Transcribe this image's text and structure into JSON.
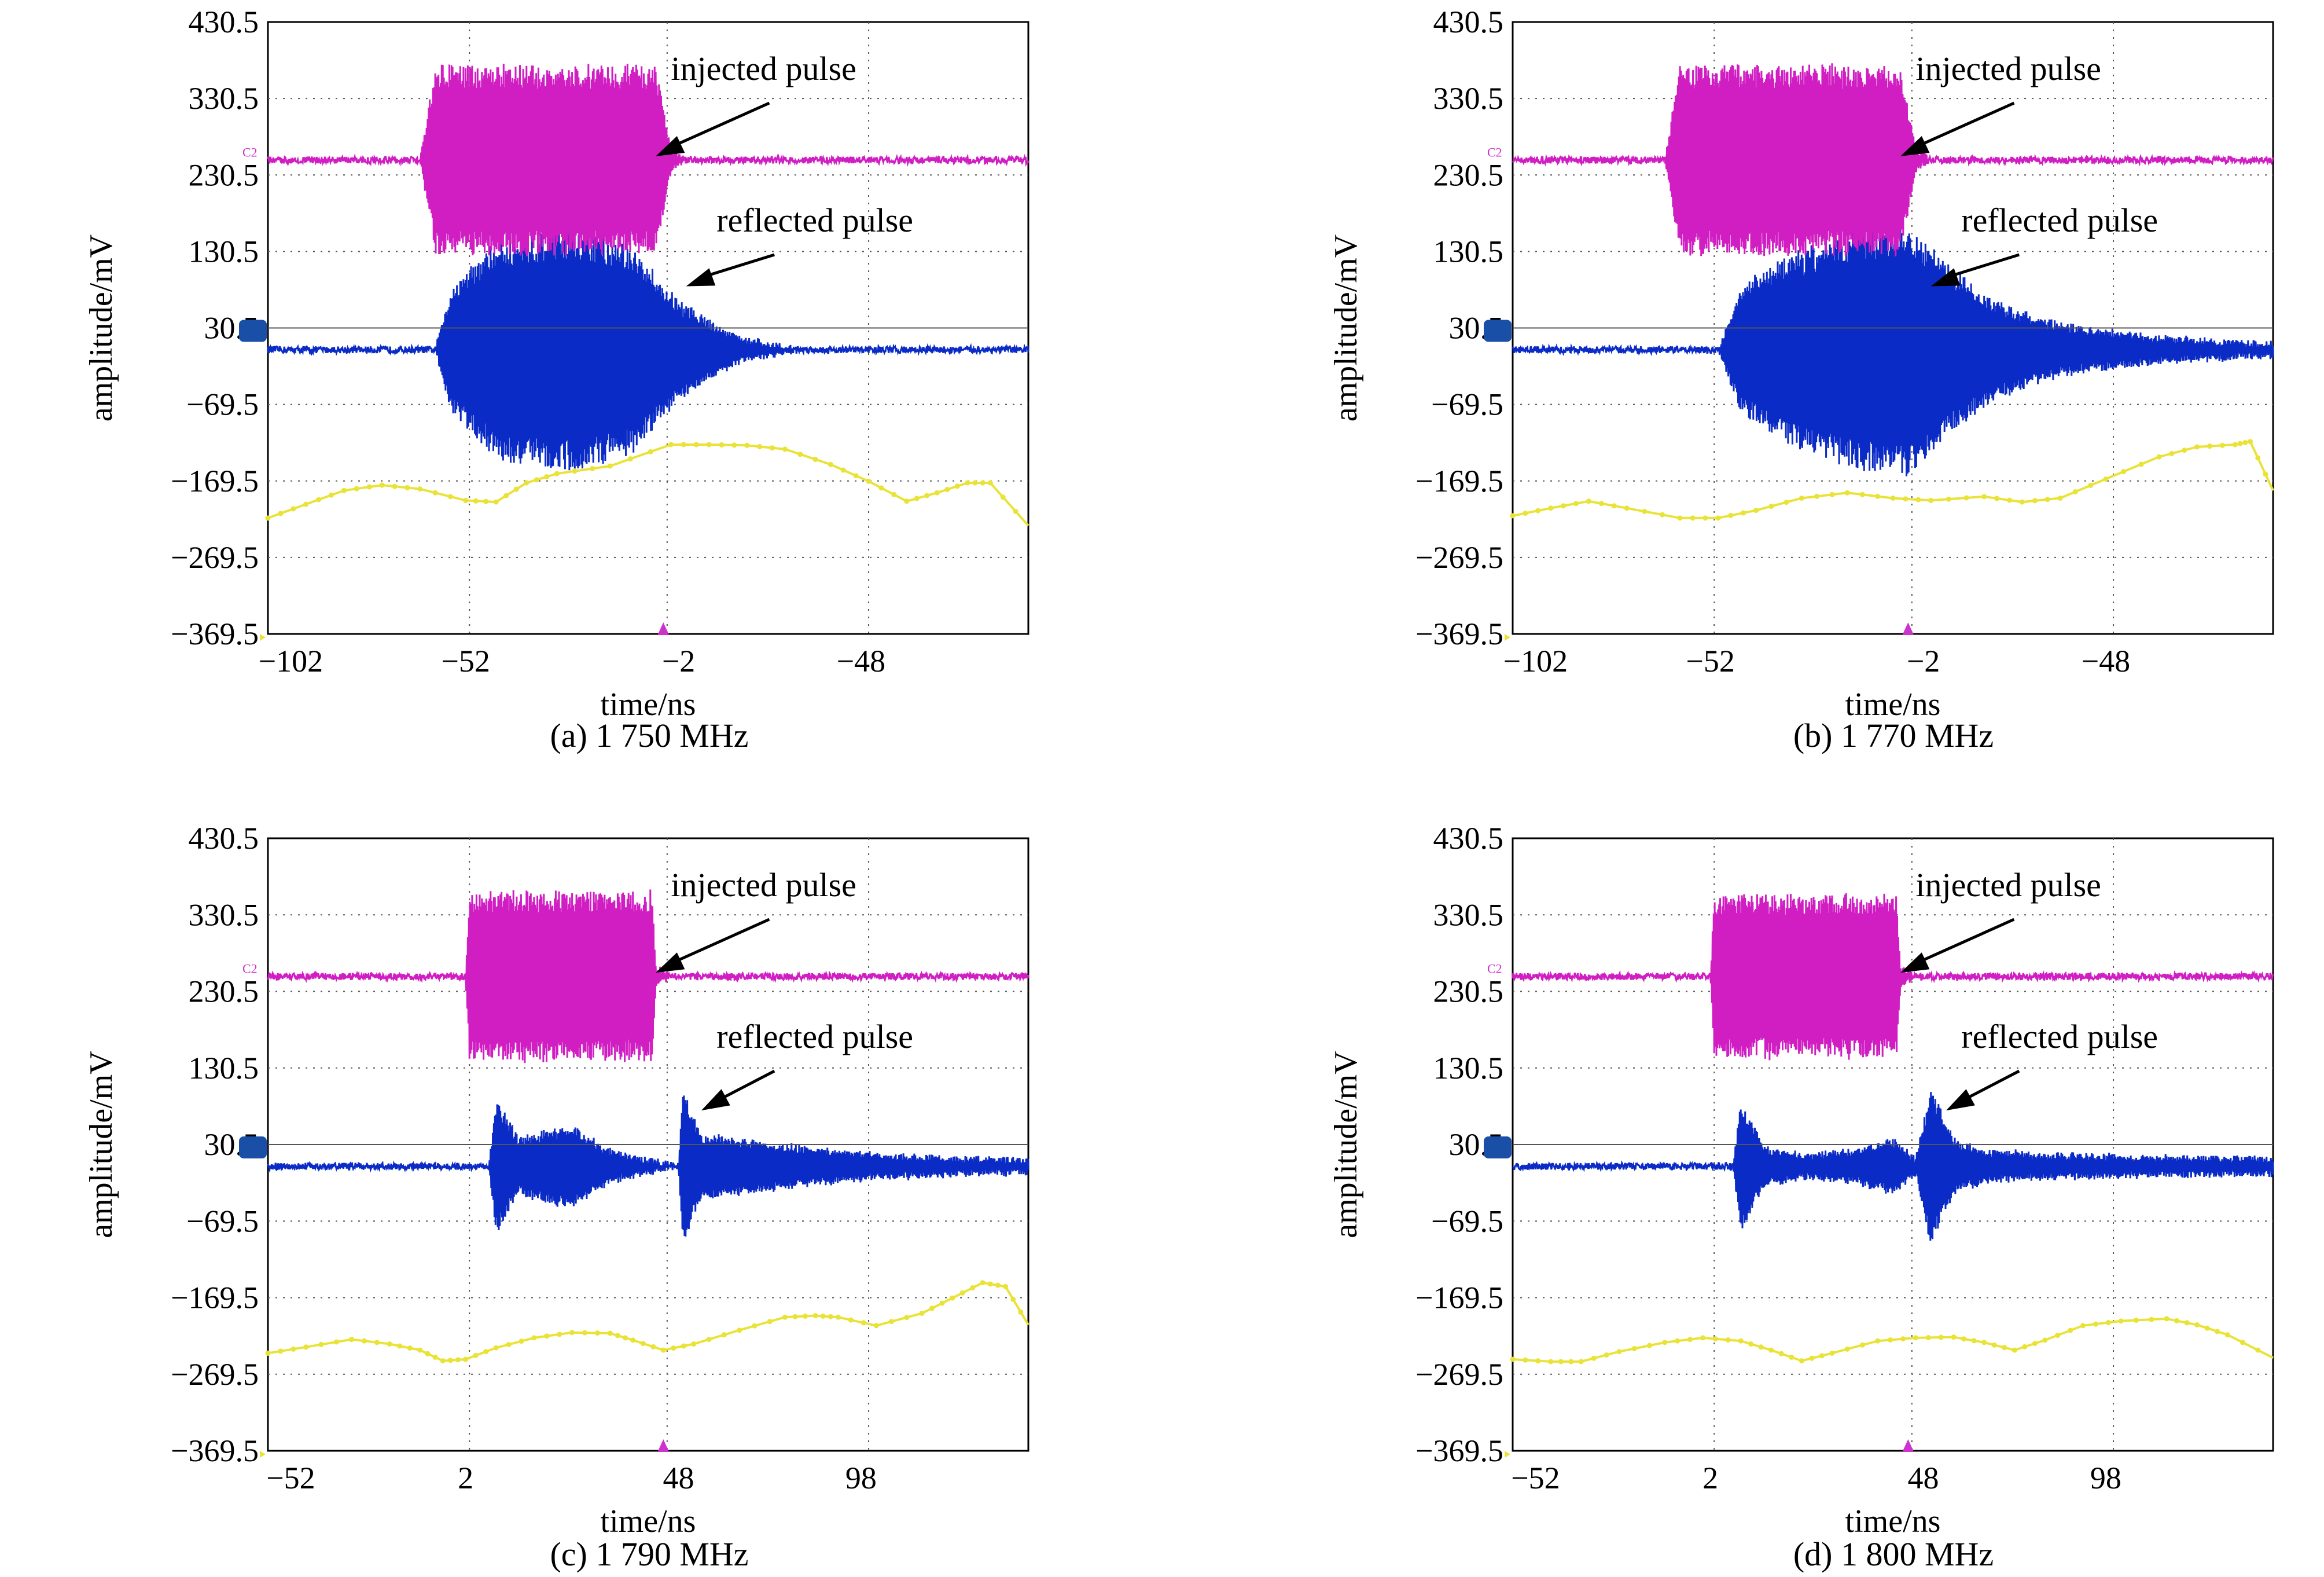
{
  "colors": {
    "injected": "#d01ec3",
    "reflected": "#0b2bc6",
    "reference": "#e9e338",
    "grid": "#555555",
    "marker_ch2": "#cc33cc",
    "marker_ch1": "#1a4fa8"
  },
  "chart_data": [
    {
      "type": "line",
      "caption": "(a) 1 750 MHz",
      "xlabel": "time/ns",
      "ylabel": "amplitude/mV",
      "x_ticks": [
        "−102",
        "−52",
        "−2",
        "−48"
      ],
      "y_ticks": [
        "430.5",
        "330.5",
        "230.5",
        "130.5",
        "30.5",
        "−69.5",
        "−169.5",
        "−269.5",
        "−369.5"
      ],
      "ylim": [
        -369.5,
        430.5
      ],
      "grid": true,
      "channel_marker": "C2",
      "annotations": [
        "injected pulse",
        "reflected pulse"
      ],
      "series": [
        {
          "baseline": 250,
          "envelope": [
            [
              0,
              0
            ],
            [
              0.2,
              0
            ],
            [
              0.22,
              1
            ],
            [
              0.51,
              1
            ],
            [
              0.53,
              0.12
            ],
            [
              0.55,
              0
            ],
            [
              1,
              0
            ]
          ],
          "amp": 125
        },
        {
          "baseline": 2,
          "envelope": [
            [
              0,
              0
            ],
            [
              0.22,
              0
            ],
            [
              0.24,
              0.5
            ],
            [
              0.3,
              0.9
            ],
            [
              0.4,
              1
            ],
            [
              0.48,
              0.85
            ],
            [
              0.54,
              0.4
            ],
            [
              0.62,
              0.1
            ],
            [
              0.7,
              0
            ],
            [
              1,
              0
            ]
          ],
          "amp": 160
        },
        {
          "points": [
            [
              0,
              -218
            ],
            [
              0.05,
              -200
            ],
            [
              0.1,
              -182
            ],
            [
              0.15,
              -175
            ],
            [
              0.2,
              -180
            ],
            [
              0.26,
              -195
            ],
            [
              0.3,
              -197
            ],
            [
              0.34,
              -172
            ],
            [
              0.38,
              -160
            ],
            [
              0.45,
              -150
            ],
            [
              0.53,
              -122
            ],
            [
              0.58,
              -122
            ],
            [
              0.63,
              -123
            ],
            [
              0.68,
              -128
            ],
            [
              0.74,
              -148
            ],
            [
              0.79,
              -170
            ],
            [
              0.84,
              -196
            ],
            [
              0.88,
              -185
            ],
            [
              0.92,
              -172
            ],
            [
              0.95,
              -172
            ],
            [
              1,
              -228
            ]
          ]
        }
      ]
    },
    {
      "type": "line",
      "caption": "(b) 1 770 MHz",
      "xlabel": "time/ns",
      "ylabel": "amplitude/mV",
      "x_ticks": [
        "−102",
        "−52",
        "−2",
        "−48"
      ],
      "y_ticks": [
        "430.5",
        "330.5",
        "230.5",
        "130.5",
        "30.5",
        "−69.5",
        "−169.5",
        "−269.5",
        "−369.5"
      ],
      "ylim": [
        -369.5,
        430.5
      ],
      "grid": true,
      "channel_marker": "C2",
      "annotations": [
        "injected pulse",
        "reflected pulse"
      ],
      "series": [
        {
          "baseline": 250,
          "envelope": [
            [
              0,
              0
            ],
            [
              0.2,
              0
            ],
            [
              0.22,
              1
            ],
            [
              0.51,
              1
            ],
            [
              0.53,
              0.12
            ],
            [
              0.55,
              0
            ],
            [
              1,
              0
            ]
          ],
          "amp": 125
        },
        {
          "baseline": 2,
          "envelope": [
            [
              0,
              0
            ],
            [
              0.27,
              0
            ],
            [
              0.3,
              0.5
            ],
            [
              0.36,
              0.75
            ],
            [
              0.45,
              0.95
            ],
            [
              0.52,
              1
            ],
            [
              0.56,
              0.75
            ],
            [
              0.63,
              0.4
            ],
            [
              0.72,
              0.2
            ],
            [
              0.85,
              0.1
            ],
            [
              1,
              0.05
            ]
          ],
          "amp": 165
        },
        {
          "points": [
            [
              0,
              -215
            ],
            [
              0.05,
              -205
            ],
            [
              0.1,
              -196
            ],
            [
              0.15,
              -205
            ],
            [
              0.22,
              -218
            ],
            [
              0.27,
              -218
            ],
            [
              0.32,
              -208
            ],
            [
              0.38,
              -192
            ],
            [
              0.44,
              -185
            ],
            [
              0.5,
              -192
            ],
            [
              0.55,
              -195
            ],
            [
              0.62,
              -190
            ],
            [
              0.67,
              -197
            ],
            [
              0.72,
              -192
            ],
            [
              0.78,
              -167
            ],
            [
              0.85,
              -138
            ],
            [
              0.9,
              -125
            ],
            [
              0.95,
              -122
            ],
            [
              0.97,
              -118
            ],
            [
              1,
              -182
            ]
          ]
        }
      ]
    },
    {
      "type": "line",
      "caption": "(c) 1 790 MHz",
      "xlabel": "time/ns",
      "ylabel": "amplitude/mV",
      "x_ticks": [
        "−52",
        "2",
        "48",
        "98"
      ],
      "y_ticks": [
        "430.5",
        "330.5",
        "230.5",
        "130.5",
        "30.5",
        "−69.5",
        "−169.5",
        "−269.5",
        "−369.5"
      ],
      "ylim": [
        -369.5,
        430.5
      ],
      "grid": true,
      "channel_marker": "C2",
      "annotations": [
        "injected pulse",
        "reflected pulse"
      ],
      "series": [
        {
          "baseline": 250,
          "envelope": [
            [
              0,
              0
            ],
            [
              0.26,
              0
            ],
            [
              0.265,
              1
            ],
            [
              0.505,
              1
            ],
            [
              0.51,
              0.12
            ],
            [
              0.53,
              0
            ],
            [
              1,
              0
            ]
          ],
          "amp": 112
        },
        {
          "baseline": 2,
          "envelope": [
            [
              0,
              0
            ],
            [
              0.29,
              0
            ],
            [
              0.3,
              0.85
            ],
            [
              0.33,
              0.35
            ],
            [
              0.36,
              0.45
            ],
            [
              0.4,
              0.5
            ],
            [
              0.45,
              0.2
            ],
            [
              0.54,
              0
            ],
            [
              0.545,
              1
            ],
            [
              0.57,
              0.4
            ],
            [
              0.62,
              0.35
            ],
            [
              0.7,
              0.25
            ],
            [
              0.8,
              0.15
            ],
            [
              1,
              0.08
            ]
          ],
          "amp": 105
        },
        {
          "points": [
            [
              0,
              -242
            ],
            [
              0.05,
              -234
            ],
            [
              0.11,
              -224
            ],
            [
              0.16,
              -230
            ],
            [
              0.2,
              -238
            ],
            [
              0.23,
              -252
            ],
            [
              0.26,
              -250
            ],
            [
              0.3,
              -235
            ],
            [
              0.35,
              -222
            ],
            [
              0.4,
              -215
            ],
            [
              0.45,
              -216
            ],
            [
              0.48,
              -225
            ],
            [
              0.52,
              -238
            ],
            [
              0.56,
              -230
            ],
            [
              0.62,
              -212
            ],
            [
              0.68,
              -195
            ],
            [
              0.72,
              -193
            ],
            [
              0.75,
              -195
            ],
            [
              0.8,
              -206
            ],
            [
              0.86,
              -190
            ],
            [
              0.9,
              -170
            ],
            [
              0.94,
              -150
            ],
            [
              0.97,
              -155
            ],
            [
              1,
              -205
            ]
          ]
        }
      ]
    },
    {
      "type": "line",
      "caption": "(d) 1 800 MHz",
      "xlabel": "time/ns",
      "ylabel": "amplitude/mV",
      "x_ticks": [
        "−52",
        "2",
        "48",
        "98"
      ],
      "y_ticks": [
        "430.5",
        "330.5",
        "230.5",
        "130.5",
        "30.5",
        "−69.5",
        "−169.5",
        "−269.5",
        "−369.5"
      ],
      "ylim": [
        -369.5,
        430.5
      ],
      "grid": true,
      "channel_marker": "C2",
      "annotations": [
        "injected pulse",
        "reflected pulse"
      ],
      "series": [
        {
          "baseline": 250,
          "envelope": [
            [
              0,
              0
            ],
            [
              0.26,
              0
            ],
            [
              0.265,
              1
            ],
            [
              0.505,
              1
            ],
            [
              0.51,
              0.12
            ],
            [
              0.53,
              0
            ],
            [
              1,
              0
            ]
          ],
          "amp": 108
        },
        {
          "baseline": 2,
          "envelope": [
            [
              0,
              0
            ],
            [
              0.29,
              0
            ],
            [
              0.3,
              0.85
            ],
            [
              0.33,
              0.25
            ],
            [
              0.38,
              0.15
            ],
            [
              0.45,
              0.2
            ],
            [
              0.5,
              0.35
            ],
            [
              0.53,
              0.1
            ],
            [
              0.55,
              1
            ],
            [
              0.58,
              0.35
            ],
            [
              0.62,
              0.2
            ],
            [
              0.7,
              0.15
            ],
            [
              1,
              0.1
            ]
          ],
          "amp": 105
        },
        {
          "points": [
            [
              0,
              -250
            ],
            [
              0.05,
              -253
            ],
            [
              0.09,
              -253
            ],
            [
              0.14,
              -240
            ],
            [
              0.2,
              -228
            ],
            [
              0.25,
              -222
            ],
            [
              0.3,
              -226
            ],
            [
              0.34,
              -238
            ],
            [
              0.38,
              -252
            ],
            [
              0.42,
              -242
            ],
            [
              0.48,
              -226
            ],
            [
              0.53,
              -222
            ],
            [
              0.58,
              -221
            ],
            [
              0.62,
              -228
            ],
            [
              0.66,
              -238
            ],
            [
              0.7,
              -225
            ],
            [
              0.75,
              -206
            ],
            [
              0.8,
              -200
            ],
            [
              0.86,
              -197
            ],
            [
              0.9,
              -205
            ],
            [
              0.94,
              -218
            ],
            [
              1,
              -248
            ]
          ]
        }
      ]
    }
  ]
}
